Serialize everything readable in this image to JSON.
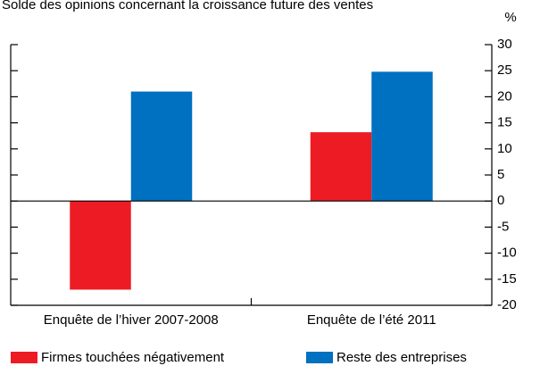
{
  "chart_data": {
    "type": "bar",
    "title": "Solde des opinions concernant la croissance future des ventes",
    "unit": "%",
    "categories": [
      "Enquête de l’hiver 2007-2008",
      "Enquête de l’été 2011"
    ],
    "series": [
      {
        "name": "Firmes touchées négativement",
        "color": "#ed1c24",
        "values": [
          -17,
          13.2
        ]
      },
      {
        "name": "Reste des entreprises",
        "color": "#0070c0",
        "values": [
          21,
          24.8
        ]
      }
    ],
    "ylim": [
      -20,
      30
    ],
    "yticks": [
      -20,
      -15,
      -10,
      -5,
      0,
      5,
      10,
      15,
      20,
      25,
      30
    ]
  }
}
